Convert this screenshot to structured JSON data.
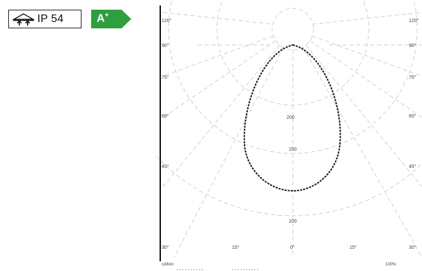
{
  "badges": {
    "ip_rating": "IP 54",
    "ip_icon": "luminaire-arrows-icon",
    "energy_class": "A",
    "energy_class_sup": "+",
    "energy_color": "#2e9e3f"
  },
  "diagram": {
    "angle_labels": {
      "left": [
        "120°",
        "90°",
        "75°",
        "60°",
        "45°",
        "30°"
      ],
      "right": [
        "120°",
        "90°",
        "75°",
        "60°",
        "45°",
        "30°"
      ],
      "bottom": [
        "15°",
        "0°",
        "15°"
      ]
    },
    "radial_labels": [
      "200",
      "150",
      "100"
    ],
    "footer": {
      "unit": "cd/klm",
      "scale": "100%"
    },
    "grid_color": "#cfcfcf",
    "curve_color": "#1a1a1a"
  }
}
